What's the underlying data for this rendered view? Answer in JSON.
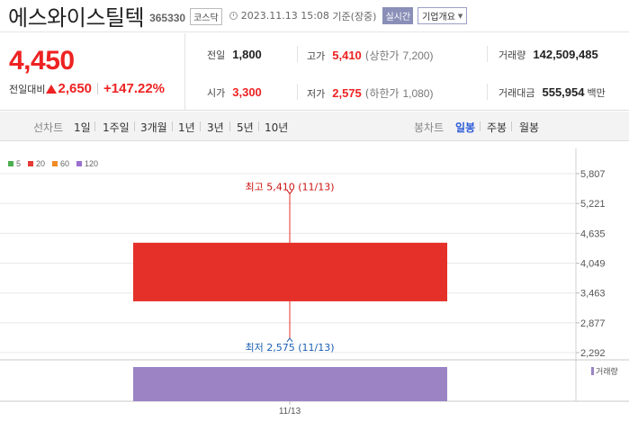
{
  "header": {
    "stock_name": "에스와이스틸텍",
    "stock_code": "365330",
    "market": "코스닥",
    "timestamp": "2023.11.13 15:08",
    "basis": "기준(장중)",
    "realtime_label": "실시간",
    "company_info_label": "기업개요"
  },
  "price": {
    "current": "4,450",
    "change_label": "전일대비",
    "change": "2,650",
    "change_rate": "+147.22%"
  },
  "stats": {
    "prev_close": {
      "label": "전일",
      "value": "1,800"
    },
    "high": {
      "label": "고가",
      "value": "5,410",
      "note_label": "(상한가",
      "note_value": "7,200)"
    },
    "volume": {
      "label": "거래량",
      "value": "142,509,485"
    },
    "open": {
      "label": "시가",
      "value": "3,300"
    },
    "low": {
      "label": "저가",
      "value": "2,575",
      "note_label": "(하한가",
      "note_value": "1,080)"
    },
    "turnover": {
      "label": "거래대금",
      "value": "555,954",
      "unit": "백만"
    }
  },
  "period_tabs": {
    "label": "선차트",
    "items": [
      "1일",
      "1주일",
      "3개월",
      "1년",
      "3년",
      "5년",
      "10년"
    ]
  },
  "candle_tabs": {
    "label": "봉차트",
    "items": [
      "일봉",
      "주봉",
      "월봉"
    ],
    "active": "일봉"
  },
  "legend": [
    {
      "label": "5",
      "color": "#4caf50"
    },
    {
      "label": "20",
      "color": "#e53935"
    },
    {
      "label": "60",
      "color": "#f08a24"
    },
    {
      "label": "120",
      "color": "#9b6fd0"
    }
  ],
  "chart_data": {
    "type": "candlestick",
    "candles": [
      {
        "date": "11/13",
        "open": 3300,
        "high": 5410,
        "low": 2575,
        "close": 4450,
        "volume": 142509485
      }
    ],
    "y_ticks": [
      "5,807",
      "5,221",
      "4,635",
      "4,049",
      "3,463",
      "2,877",
      "2,292"
    ],
    "ylim": [
      2292,
      5807
    ],
    "x_ticks": [
      "11/13"
    ],
    "annotations": {
      "high": "최고 5,410 (11/13)",
      "low": "최저 2,575 (11/13)"
    },
    "volume_label": "거래량",
    "colors": {
      "up": "#e53029",
      "high_text": "#cc1111",
      "low_text": "#1a5fb4",
      "volume": "#9b83c4",
      "grid": "#e8e8e8"
    }
  }
}
